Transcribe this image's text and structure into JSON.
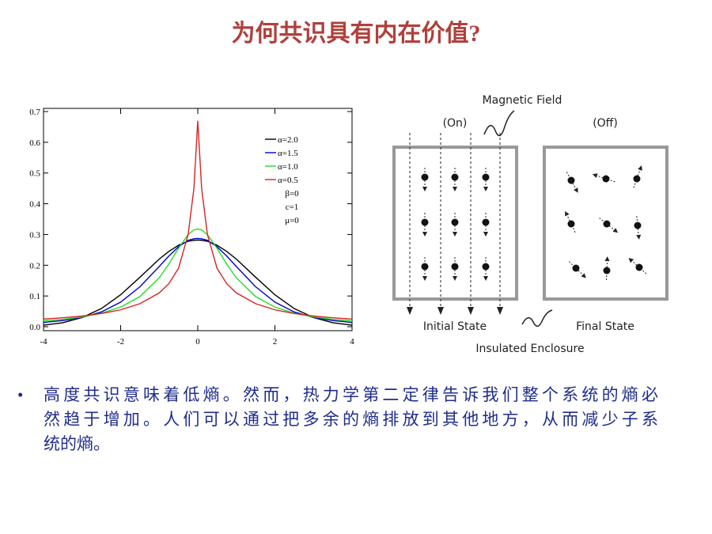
{
  "title": "为何共识具有内在价值?",
  "chart_data": {
    "type": "line",
    "x": [
      -4,
      -3.5,
      -3,
      -2.5,
      -2,
      -1.5,
      -1,
      -0.75,
      -0.5,
      -0.25,
      -0.1,
      0,
      0.1,
      0.25,
      0.5,
      0.75,
      1,
      1.5,
      2,
      2.5,
      3,
      3.5,
      4
    ],
    "series": [
      {
        "name": "α=2.0",
        "color": "#000000",
        "values": [
          0.005,
          0.013,
          0.03,
          0.059,
          0.104,
          0.161,
          0.22,
          0.245,
          0.265,
          0.278,
          0.281,
          0.282,
          0.281,
          0.278,
          0.265,
          0.245,
          0.22,
          0.161,
          0.104,
          0.059,
          0.03,
          0.013,
          0.005
        ]
      },
      {
        "name": "α=1.5",
        "color": "#0000cc",
        "values": [
          0.014,
          0.02,
          0.03,
          0.048,
          0.08,
          0.13,
          0.196,
          0.23,
          0.26,
          0.281,
          0.286,
          0.287,
          0.286,
          0.281,
          0.26,
          0.23,
          0.196,
          0.13,
          0.08,
          0.048,
          0.03,
          0.02,
          0.014
        ]
      },
      {
        "name": "α=1.0",
        "color": "#22dd22",
        "values": [
          0.019,
          0.024,
          0.032,
          0.044,
          0.064,
          0.098,
          0.159,
          0.204,
          0.255,
          0.3,
          0.315,
          0.318,
          0.315,
          0.3,
          0.255,
          0.204,
          0.159,
          0.098,
          0.064,
          0.044,
          0.032,
          0.024,
          0.019
        ]
      },
      {
        "name": "α=0.5",
        "color": "#dd2222",
        "values": [
          0.025,
          0.029,
          0.035,
          0.043,
          0.055,
          0.075,
          0.11,
          0.14,
          0.19,
          0.3,
          0.45,
          0.67,
          0.45,
          0.3,
          0.19,
          0.14,
          0.11,
          0.075,
          0.055,
          0.043,
          0.035,
          0.029,
          0.025
        ]
      }
    ],
    "annotations": [
      "β=0",
      "c=1",
      "μ=0"
    ],
    "xlim": [
      -4,
      4
    ],
    "xticks": [
      -4,
      -2,
      0,
      2,
      4
    ],
    "ylim": [
      0,
      0.7
    ],
    "yticks": [
      {
        "value": 0,
        "label": "0.0"
      },
      0.1,
      0.2,
      0.3,
      0.4,
      0.5,
      0.6,
      0.7
    ],
    "legend": "upper-right",
    "grid": false
  },
  "diagram": {
    "field_label": "Magnetic Field",
    "on_label": "(On)",
    "off_label": "(Off)",
    "initial_label": "Initial State",
    "final_label": "Final State",
    "enclosure_label": "Insulated Enclosure"
  },
  "bullet": {
    "marker": "•",
    "lines": [
      "高度共识意味着低熵。然而，热力学第二定律告诉我们整个系统的熵必",
      "然趋于增加。人们可以通过把多余的熵排放到其他地方，从而减少子系",
      "统的熵。"
    ]
  }
}
